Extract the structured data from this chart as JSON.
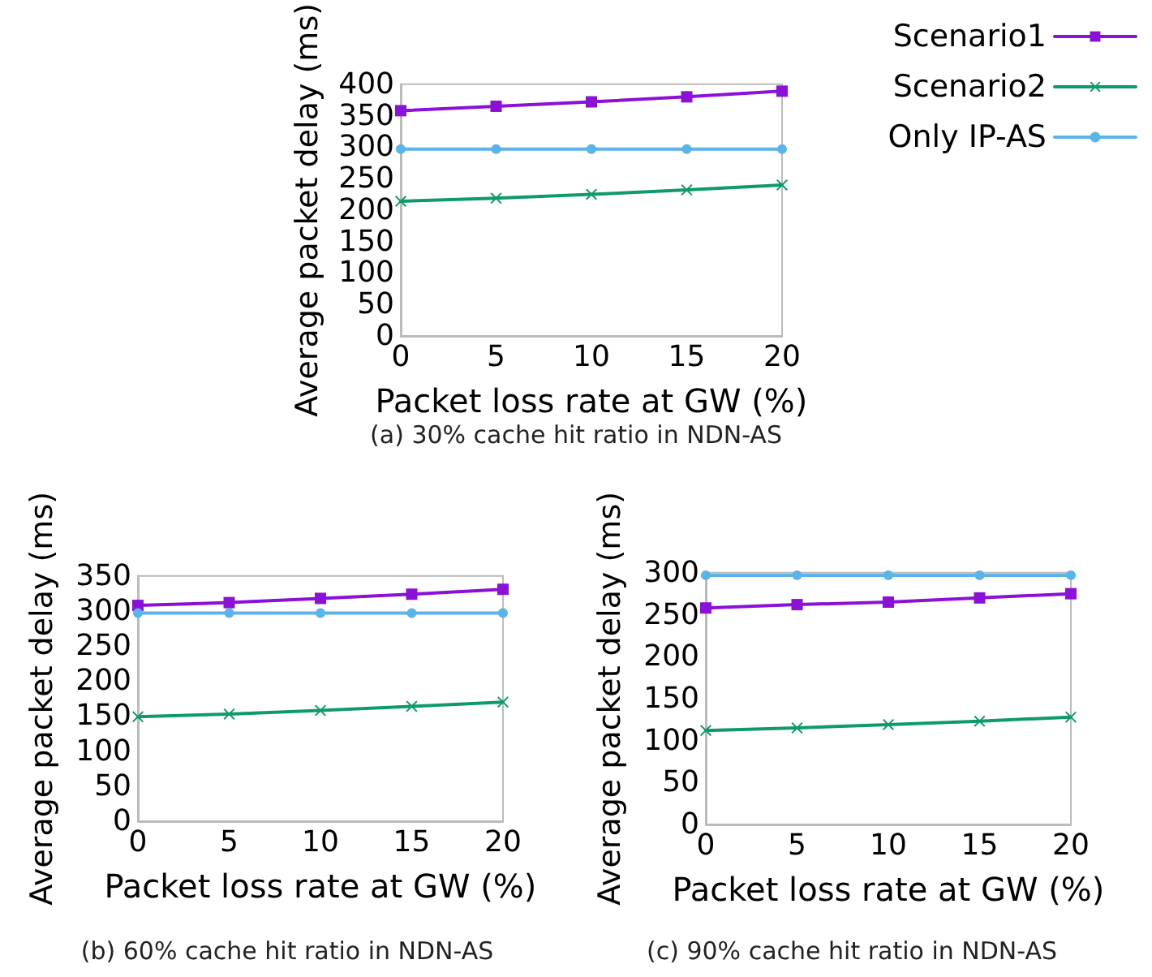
{
  "chart_data": [
    {
      "type": "line",
      "xlabel": "Packet loss rate at GW (%)",
      "ylabel": "Average packet delay (ms)",
      "annotations": [
        "(a) 30% cache hit ratio in NDN-AS"
      ],
      "x": [
        0,
        5,
        10,
        15,
        20
      ],
      "xlim": [
        0,
        20
      ],
      "xticks": [
        0,
        5,
        10,
        15,
        20
      ],
      "ylim": [
        0,
        400
      ],
      "yticks": [
        0,
        50,
        100,
        150,
        200,
        250,
        300,
        350,
        400
      ],
      "legend": "top right",
      "series": [
        {
          "name": "Scenario1",
          "color": "#8b10d8",
          "marker": "square",
          "values": [
            358,
            365,
            372,
            380,
            389
          ]
        },
        {
          "name": "Scenario2",
          "color": "#0f9a6a",
          "marker": "cross",
          "values": [
            214,
            219,
            225,
            232,
            240
          ]
        },
        {
          "name": "Only IP-AS",
          "color": "#5ab4e8",
          "marker": "circle",
          "values": [
            297,
            297,
            297,
            297,
            297
          ]
        }
      ]
    },
    {
      "type": "line",
      "xlabel": "Packet loss rate at GW (%)",
      "ylabel": "Average packet delay (ms)",
      "annotations": [
        "(b) 60% cache hit ratio in NDN-AS"
      ],
      "x": [
        0,
        5,
        10,
        15,
        20
      ],
      "xlim": [
        0,
        20
      ],
      "xticks": [
        0,
        5,
        10,
        15,
        20
      ],
      "ylim": [
        0,
        350
      ],
      "yticks": [
        0,
        50,
        100,
        150,
        200,
        250,
        300,
        350
      ],
      "series": [
        {
          "color": "#8b10d8",
          "marker": "square",
          "values": [
            308,
            312,
            318,
            324,
            331
          ]
        },
        {
          "color": "#0f9a6a",
          "marker": "cross",
          "values": [
            149,
            153,
            158,
            164,
            170
          ]
        },
        {
          "color": "#5ab4e8",
          "marker": "circle",
          "values": [
            297,
            297,
            297,
            297,
            297
          ]
        }
      ]
    },
    {
      "type": "line",
      "xlabel": "Packet loss rate at GW (%)",
      "ylabel": "Average packet delay (ms)",
      "annotations": [
        "(c) 90% cache hit ratio in NDN-AS"
      ],
      "x": [
        0,
        5,
        10,
        15,
        20
      ],
      "xlim": [
        0,
        20
      ],
      "xticks": [
        0,
        5,
        10,
        15,
        20
      ],
      "ylim": [
        0,
        300
      ],
      "yticks": [
        0,
        50,
        100,
        150,
        200,
        250,
        300
      ],
      "series": [
        {
          "color": "#8b10d8",
          "marker": "square",
          "values": [
            258,
            262,
            265,
            270,
            275
          ]
        },
        {
          "color": "#0f9a6a",
          "marker": "cross",
          "values": [
            112,
            115,
            119,
            123,
            128
          ]
        },
        {
          "color": "#5ab4e8",
          "marker": "circle",
          "values": [
            297,
            297,
            297,
            297,
            297
          ]
        }
      ]
    }
  ]
}
